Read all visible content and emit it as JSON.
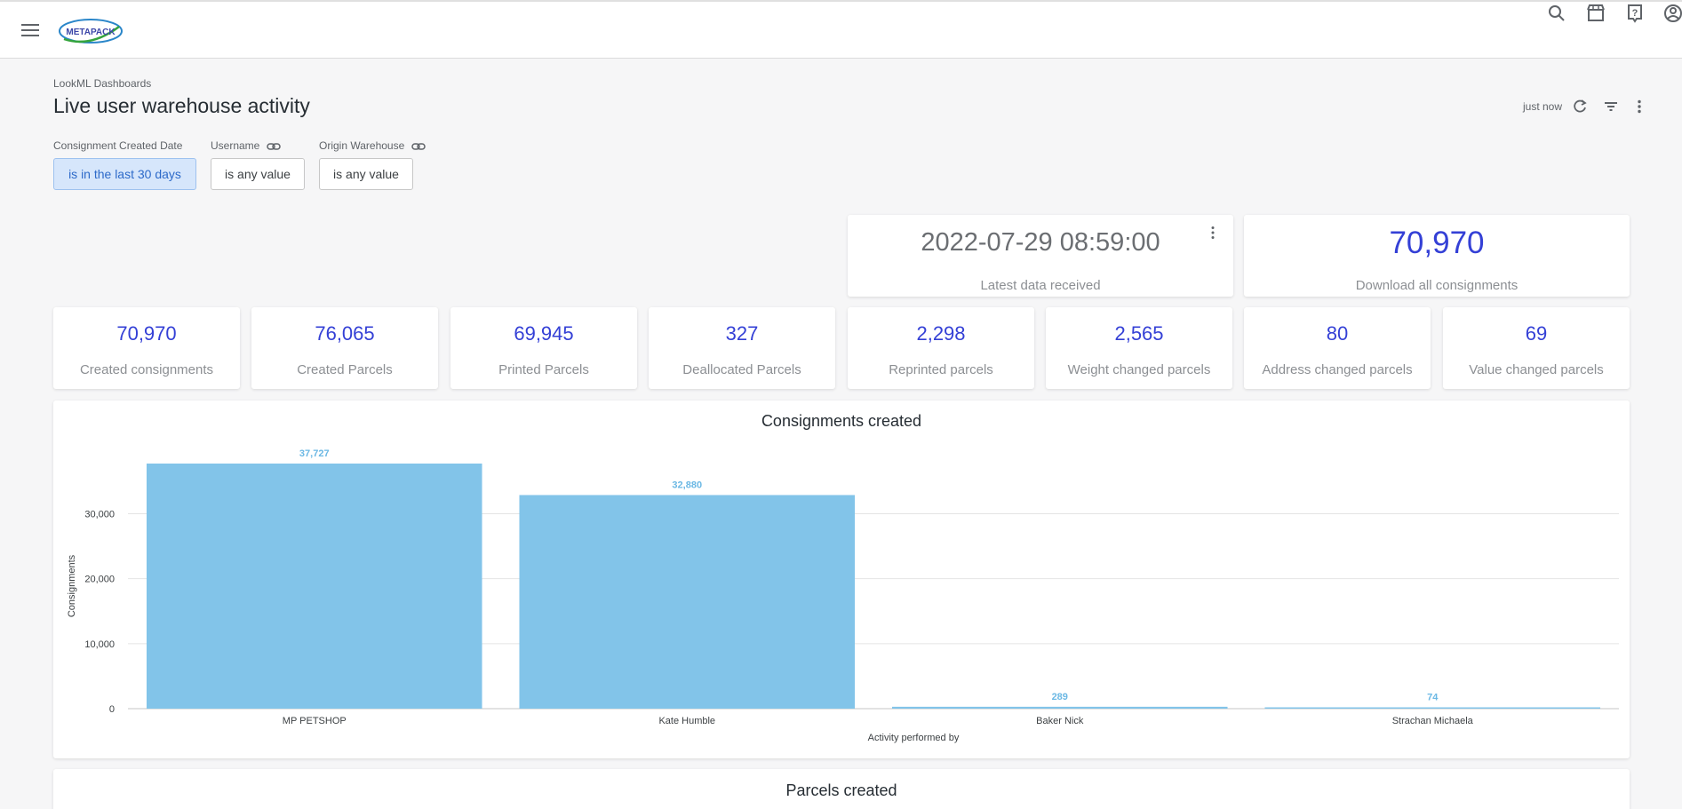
{
  "app": {
    "logo_text": "METAPACK"
  },
  "header": {
    "breadcrumb": "LookML Dashboards",
    "title": "Live user warehouse activity",
    "refresh_time": "just now"
  },
  "filters": [
    {
      "label": "Consignment Created Date",
      "value": "is in the last 30 days",
      "active": true
    },
    {
      "label": "Username",
      "value": "is any value",
      "active": false
    },
    {
      "label": "Origin Warehouse",
      "value": "is any value",
      "active": false
    }
  ],
  "big_tiles": [
    {
      "value": "2022-07-29 08:59:00",
      "label": "Latest data received"
    },
    {
      "value": "70,970",
      "label": "Download all consignments"
    }
  ],
  "small_tiles": [
    {
      "value": "70,970",
      "label": "Created consignments"
    },
    {
      "value": "76,065",
      "label": "Created Parcels"
    },
    {
      "value": "69,945",
      "label": "Printed Parcels"
    },
    {
      "value": "327",
      "label": "Deallocated Parcels"
    },
    {
      "value": "2,298",
      "label": "Reprinted parcels"
    },
    {
      "value": "2,565",
      "label": "Weight changed parcels"
    },
    {
      "value": "80",
      "label": "Address changed parcels"
    },
    {
      "value": "69",
      "label": "Value changed parcels"
    }
  ],
  "chart_data": {
    "type": "bar",
    "title": "Consignments created",
    "xlabel": "Activity performed by",
    "ylabel": "Consignments",
    "categories": [
      "MP PETSHOP",
      "Kate Humble",
      "Baker Nick",
      "Strachan Michaela"
    ],
    "values": [
      37727,
      32880,
      289,
      74
    ],
    "value_labels": [
      "37,727",
      "32,880",
      "289",
      "74"
    ],
    "yticks": [
      0,
      10000,
      20000,
      30000
    ],
    "ytick_labels": [
      "0",
      "10,000",
      "20,000",
      "30,000"
    ],
    "ylim": [
      0,
      37727
    ],
    "grid": true,
    "bar_color": "#82c4e9",
    "label_color": "#6bb8e4"
  },
  "second_card": {
    "title": "Parcels created"
  }
}
